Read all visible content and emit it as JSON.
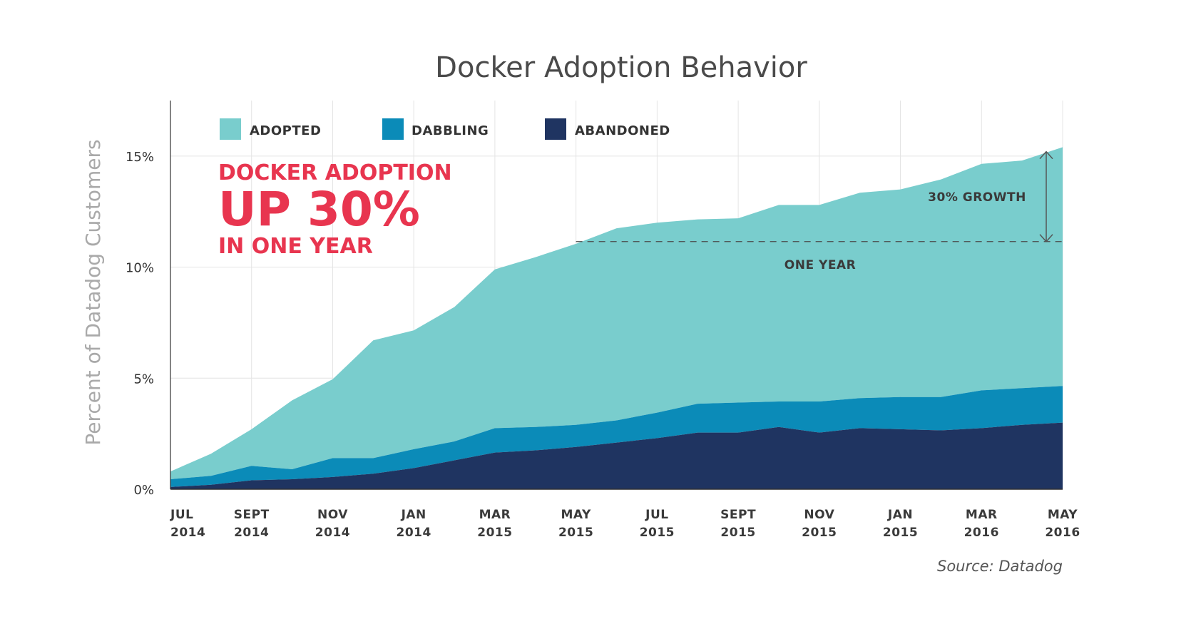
{
  "chart_data": {
    "type": "area",
    "stacked": true,
    "title": "Docker Adoption Behavior",
    "ylabel": "Percent of Datadog Customers",
    "xlabel": "",
    "ylim": [
      0,
      17.5
    ],
    "yticks": [
      0,
      5,
      10,
      15
    ],
    "ytick_labels": [
      "0%",
      "5%",
      "10%",
      "15%"
    ],
    "legend_position": "top-left",
    "colors": {
      "adopted": "#79cdcd",
      "dabbling": "#0b8bb8",
      "abandoned": "#1f3461",
      "headline": "#e8354f",
      "grid": "#e4e4e4"
    },
    "x_tick_labels": [
      [
        "JUL",
        "2014"
      ],
      [
        "SEPT",
        "2014"
      ],
      [
        "NOV",
        "2014"
      ],
      [
        "JAN",
        "2014"
      ],
      [
        "MAR",
        "2015"
      ],
      [
        "MAY",
        "2015"
      ],
      [
        "JUL",
        "2015"
      ],
      [
        "SEPT",
        "2015"
      ],
      [
        "NOV",
        "2015"
      ],
      [
        "JAN",
        "2015"
      ],
      [
        "MAR",
        "2016"
      ],
      [
        "MAY",
        "2016"
      ]
    ],
    "x_months": [
      0,
      1,
      2,
      3,
      4,
      5,
      6,
      7,
      8,
      9,
      10,
      11,
      12,
      13,
      14,
      15,
      16,
      17,
      18,
      19,
      20,
      21,
      22
    ],
    "series": [
      {
        "name": "ABANDONED",
        "color_key": "abandoned",
        "values": [
          0.1,
          0.2,
          0.4,
          0.45,
          0.55,
          0.7,
          0.95,
          1.3,
          1.65,
          1.75,
          1.9,
          2.1,
          2.3,
          2.55,
          2.55,
          2.8,
          2.55,
          2.75,
          2.7,
          2.65,
          2.75,
          2.9,
          3.0
        ]
      },
      {
        "name": "DABBLING",
        "color_key": "dabbling",
        "values": [
          0.35,
          0.4,
          0.65,
          0.45,
          0.85,
          0.7,
          0.85,
          0.85,
          1.1,
          1.05,
          1.0,
          1.0,
          1.15,
          1.3,
          1.35,
          1.15,
          1.4,
          1.35,
          1.45,
          1.5,
          1.7,
          1.65,
          1.65
        ]
      },
      {
        "name": "ADOPTED",
        "color_key": "adopted",
        "values": [
          0.35,
          1.0,
          1.65,
          3.1,
          3.55,
          5.3,
          5.35,
          6.05,
          7.15,
          7.65,
          8.15,
          8.65,
          8.55,
          8.3,
          8.3,
          8.85,
          8.85,
          9.25,
          9.35,
          9.8,
          10.2,
          10.25,
          10.75
        ]
      }
    ],
    "legend": [
      "ADOPTED",
      "DABBLING",
      "ABANDONED"
    ],
    "headline": [
      "DOCKER ADOPTION",
      "UP 30%",
      "IN ONE YEAR"
    ],
    "annotations": {
      "reference_value": 11.15,
      "reference_start_month": 10,
      "growth_from": 11.15,
      "growth_to": 15.2,
      "growth_label": "30% GROWTH",
      "one_year_label": "ONE YEAR"
    },
    "source": "Source: Datadog"
  }
}
